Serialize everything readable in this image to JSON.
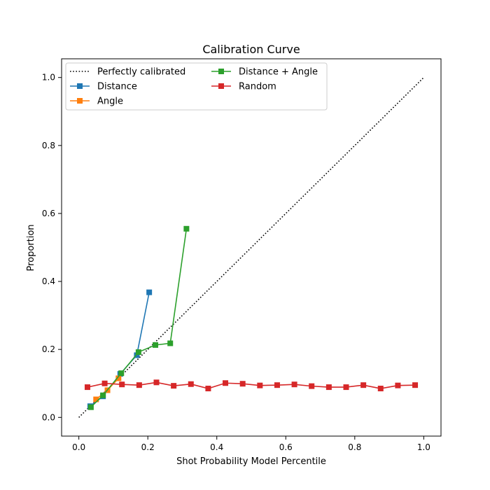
{
  "chart_data": {
    "type": "line",
    "title": "Calibration Curve",
    "xlabel": "Shot Probability Model Percentile",
    "ylabel": "Proportion",
    "xlim": [
      -0.05,
      1.05
    ],
    "ylim": [
      -0.055,
      1.055
    ],
    "xticks": [
      0.0,
      0.2,
      0.4,
      0.6,
      0.8,
      1.0
    ],
    "yticks": [
      0.0,
      0.2,
      0.4,
      0.6,
      0.8,
      1.0
    ],
    "xtick_labels": [
      "0.0",
      "0.2",
      "0.4",
      "0.6",
      "0.8",
      "1.0"
    ],
    "ytick_labels": [
      "0.0",
      "0.2",
      "0.4",
      "0.6",
      "0.8",
      "1.0"
    ],
    "grid": false,
    "legend_position": "upper-left",
    "series": [
      {
        "name": "Perfectly calibrated",
        "color": "#000000",
        "style": "dotted",
        "marker": "none",
        "x": [
          0.0,
          1.0
        ],
        "y": [
          0.0,
          1.0
        ]
      },
      {
        "name": "Distance",
        "color": "#1f77b4",
        "style": "solid",
        "marker": "square",
        "x": [
          0.033,
          0.07,
          0.12,
          0.168,
          0.204
        ],
        "y": [
          0.033,
          0.062,
          0.128,
          0.183,
          0.368
        ]
      },
      {
        "name": "Angle",
        "color": "#ff7f0e",
        "style": "solid",
        "marker": "square",
        "x": [
          0.05,
          0.083,
          0.115
        ],
        "y": [
          0.053,
          0.08,
          0.115
        ]
      },
      {
        "name": "Distance + Angle",
        "color": "#2ca02c",
        "style": "solid",
        "marker": "square",
        "x": [
          0.035,
          0.07,
          0.123,
          0.173,
          0.222,
          0.265,
          0.312
        ],
        "y": [
          0.03,
          0.065,
          0.13,
          0.192,
          0.213,
          0.218,
          0.555
        ]
      },
      {
        "name": "Random",
        "color": "#d62728",
        "style": "solid",
        "marker": "square",
        "x": [
          0.025,
          0.075,
          0.125,
          0.175,
          0.225,
          0.275,
          0.325,
          0.375,
          0.425,
          0.475,
          0.525,
          0.575,
          0.625,
          0.675,
          0.725,
          0.775,
          0.825,
          0.875,
          0.925,
          0.975
        ],
        "y": [
          0.089,
          0.1,
          0.097,
          0.095,
          0.103,
          0.093,
          0.098,
          0.085,
          0.101,
          0.099,
          0.094,
          0.095,
          0.097,
          0.092,
          0.089,
          0.089,
          0.095,
          0.085,
          0.094,
          0.095
        ]
      }
    ]
  }
}
